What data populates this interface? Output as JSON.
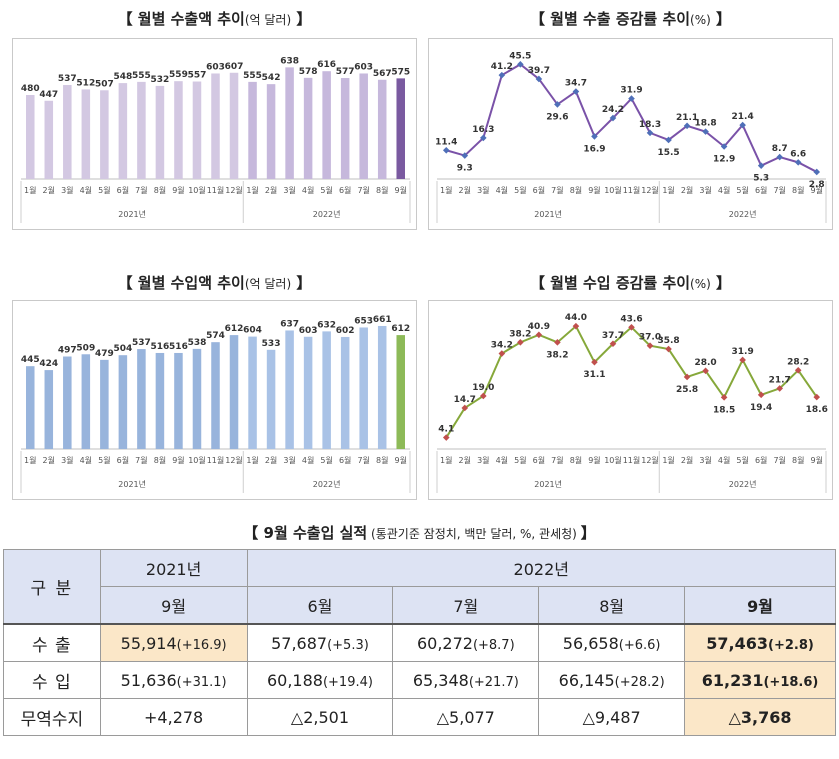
{
  "titles": {
    "export_amount": "【 월별 수출액 추이",
    "export_amount_unit": "(억 달러)",
    "export_amount_end": " 】",
    "export_growth": "【 월별 수출 증감률 추이",
    "export_growth_unit": "(%)",
    "export_growth_end": " 】",
    "import_amount": "【 월별 수입액 추이",
    "import_amount_unit": "(억 달러)",
    "import_amount_end": " 】",
    "import_growth": "【 월별 수입 증감률 추이",
    "import_growth_unit": "(%)",
    "import_growth_end": " 】"
  },
  "chart_data": [
    {
      "id": "export-amount",
      "type": "bar",
      "title": "월별 수출액 추이(억 달러)",
      "categories": [
        "1월",
        "2월",
        "3월",
        "4월",
        "5월",
        "6월",
        "7월",
        "8월",
        "9월",
        "10월",
        "11월",
        "12월",
        "1월",
        "2월",
        "3월",
        "4월",
        "5월",
        "6월",
        "7월",
        "8월",
        "9월"
      ],
      "groups": [
        {
          "label": "2021년",
          "count": 12
        },
        {
          "label": "2022년",
          "count": 9
        }
      ],
      "values": [
        480,
        447,
        537,
        512,
        507,
        548,
        555,
        532,
        559,
        557,
        603,
        607,
        555,
        542,
        638,
        578,
        616,
        577,
        603,
        567,
        575
      ],
      "ylim": [
        0,
        720
      ],
      "colors": {
        "y2021": "#d3c8e2",
        "y2022": "#c6b8dc",
        "last": "#7a5aa0"
      }
    },
    {
      "id": "export-growth",
      "type": "line",
      "title": "월별 수출 증감률 추이(%)",
      "categories": [
        "1월",
        "2월",
        "3월",
        "4월",
        "5월",
        "6월",
        "7월",
        "8월",
        "9월",
        "10월",
        "11월",
        "12월",
        "1월",
        "2월",
        "3월",
        "4월",
        "5월",
        "6월",
        "7월",
        "8월",
        "9월"
      ],
      "groups": [
        {
          "label": "2021년",
          "count": 12
        },
        {
          "label": "2022년",
          "count": 9
        }
      ],
      "values": [
        11.4,
        9.3,
        16.3,
        41.2,
        45.5,
        39.7,
        29.6,
        34.7,
        16.9,
        24.2,
        31.9,
        18.3,
        15.5,
        21.1,
        18.8,
        12.9,
        21.4,
        5.3,
        8.7,
        6.6,
        2.8
      ],
      "ylim": [
        0,
        50
      ],
      "colors": {
        "line": "#7a52a8",
        "marker": "#4f6fb8"
      }
    },
    {
      "id": "import-amount",
      "type": "bar",
      "title": "월별 수입액 추이(억 달러)",
      "categories": [
        "1월",
        "2월",
        "3월",
        "4월",
        "5월",
        "6월",
        "7월",
        "8월",
        "9월",
        "10월",
        "11월",
        "12월",
        "1월",
        "2월",
        "3월",
        "4월",
        "5월",
        "6월",
        "7월",
        "8월",
        "9월"
      ],
      "groups": [
        {
          "label": "2021년",
          "count": 12
        },
        {
          "label": "2022년",
          "count": 9
        }
      ],
      "values": [
        445,
        424,
        497,
        509,
        479,
        504,
        537,
        516,
        516,
        538,
        574,
        612,
        604,
        533,
        637,
        603,
        632,
        602,
        653,
        661,
        612
      ],
      "ylim": [
        0,
        720
      ],
      "colors": {
        "y2021": "#98b4dc",
        "y2022": "#a9c2e6",
        "last": "#8dba58"
      }
    },
    {
      "id": "import-growth",
      "type": "line",
      "title": "월별 수입 증감률 추이(%)",
      "categories": [
        "1월",
        "2월",
        "3월",
        "4월",
        "5월",
        "6월",
        "7월",
        "8월",
        "9월",
        "10월",
        "11월",
        "12월",
        "1월",
        "2월",
        "3월",
        "4월",
        "5월",
        "6월",
        "7월",
        "8월",
        "9월"
      ],
      "groups": [
        {
          "label": "2021년",
          "count": 12
        },
        {
          "label": "2022년",
          "count": 9
        }
      ],
      "values": [
        4.1,
        14.7,
        19.0,
        34.2,
        38.2,
        40.9,
        38.2,
        44.0,
        31.1,
        37.7,
        43.6,
        37.0,
        35.8,
        25.8,
        28.0,
        18.5,
        31.9,
        19.4,
        21.7,
        28.2,
        18.6
      ],
      "ylim": [
        0,
        48
      ],
      "colors": {
        "line": "#86a83a",
        "marker": "#c0504d"
      }
    }
  ],
  "table": {
    "title": "【 9월 수출입 실적",
    "subtitle": " (통관기준 잠정치, 백만 달러, %, 관세청) ",
    "title_end": "】",
    "header": {
      "division": "구  분",
      "year2021": "2021년",
      "year2022": "2022년",
      "months": [
        "9월",
        "6월",
        "7월",
        "8월",
        "9월"
      ]
    },
    "rows": [
      {
        "label": "수  출",
        "cells": [
          {
            "v": "55,914",
            "c": "(+16.9)"
          },
          {
            "v": "57,687",
            "c": "(+5.3)"
          },
          {
            "v": "60,272",
            "c": "(+8.7)"
          },
          {
            "v": "56,658",
            "c": "(+6.6)"
          },
          {
            "v": "57,463",
            "c": "(+2.8)"
          }
        ]
      },
      {
        "label": "수  입",
        "cells": [
          {
            "v": "51,636",
            "c": "(+31.1)"
          },
          {
            "v": "60,188",
            "c": "(+19.4)"
          },
          {
            "v": "65,348",
            "c": "(+21.7)"
          },
          {
            "v": "66,145",
            "c": "(+28.2)"
          },
          {
            "v": "61,231",
            "c": "(+18.6)"
          }
        ]
      },
      {
        "label": "무역수지",
        "cells": [
          {
            "v": "+4,278",
            "c": ""
          },
          {
            "v": "△2,501",
            "c": ""
          },
          {
            "v": "△5,077",
            "c": ""
          },
          {
            "v": "△9,487",
            "c": ""
          },
          {
            "v": "△3,768",
            "c": ""
          }
        ]
      }
    ]
  }
}
